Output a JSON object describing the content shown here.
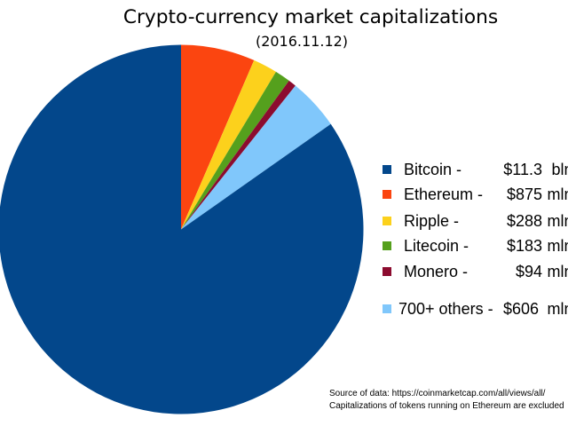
{
  "chart_data": {
    "type": "pie",
    "title": "Crypto-currency market capitalizations",
    "subtitle": "(2016.11.12)",
    "slices": [
      {
        "label": "Bitcoin",
        "value_mln": 11300,
        "display_value": "$11.3",
        "display_unit": "bln",
        "color": "#03478B"
      },
      {
        "label": "Ethereum",
        "value_mln": 875,
        "display_value": "$875",
        "display_unit": "mln",
        "color": "#FB4510"
      },
      {
        "label": "Ripple",
        "value_mln": 288,
        "display_value": "$288",
        "display_unit": "mln",
        "color": "#FCD11C"
      },
      {
        "label": "Litecoin",
        "value_mln": 183,
        "display_value": "$183",
        "display_unit": "mln",
        "color": "#55A01D"
      },
      {
        "label": "Monero",
        "value_mln": 94,
        "display_value": "$94",
        "display_unit": "mln",
        "color": "#8C0C2F"
      },
      {
        "label": "700+ others",
        "value_mln": 606,
        "display_value": "$606",
        "display_unit": "mln",
        "color": "#80C7FB"
      }
    ],
    "draw_order": [
      1,
      2,
      3,
      4,
      5,
      0
    ],
    "start_angle": "top",
    "direction": "clockwise",
    "legend_position": "right"
  },
  "legend": {
    "items": [
      {
        "label": "Bitcoin -",
        "value": "$11.3",
        "unit": "bln",
        "color": "#03478B"
      },
      {
        "label": "Ethereum -",
        "value": "$875",
        "unit": "mln",
        "color": "#FB4510"
      },
      {
        "label": "Ripple -",
        "value": "$288",
        "unit": "mln",
        "color": "#FCD11C"
      },
      {
        "label": "Litecoin -",
        "value": "$183",
        "unit": "mln",
        "color": "#55A01D"
      },
      {
        "label": "Monero -",
        "value": "$94",
        "unit": "mln",
        "color": "#8C0C2F"
      },
      {
        "label": "700+ others -",
        "value": "$606",
        "unit": "mln",
        "color": "#80C7FB"
      }
    ]
  },
  "footer": {
    "line1": "Source of data: https://coinmarketcap.com/all/views/all/",
    "line2": "Capitalizations of tokens running on Ethereum are excluded"
  },
  "colors": {
    "background": "#ffffff",
    "text": "#000000"
  }
}
